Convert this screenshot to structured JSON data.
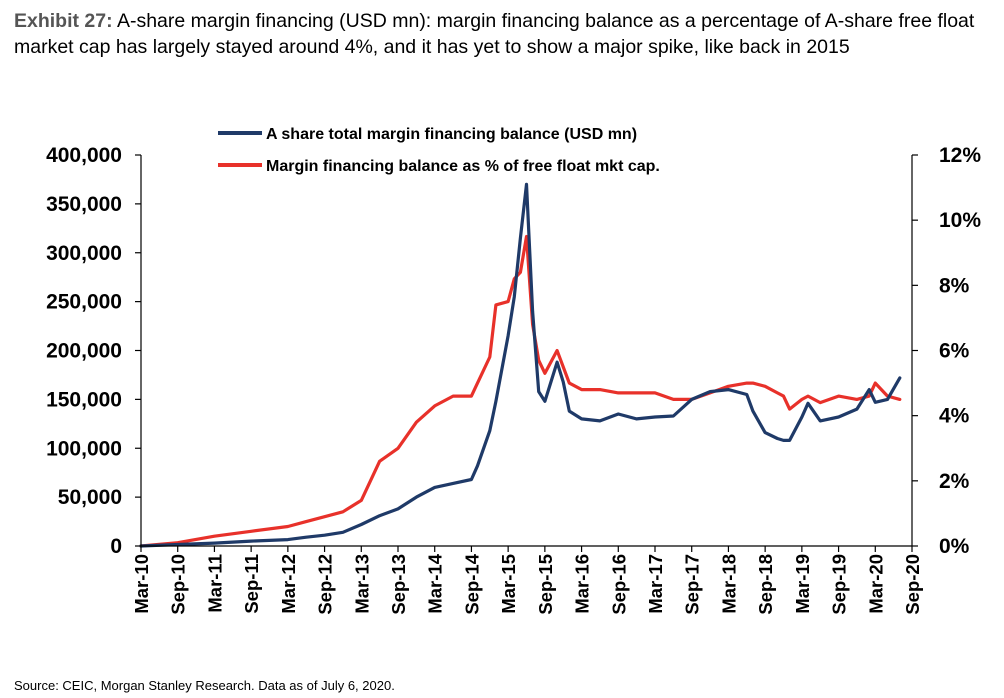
{
  "exhibit": {
    "label": "Exhibit 27:",
    "text": "A-share margin financing (USD mn): margin financing balance as a percentage of A-share free float market cap has largely stayed around 4%, and it has yet to show a major spike, like back in 2015"
  },
  "source": "Source: CEIC, Morgan Stanley Research. Data as of July 6, 2020.",
  "colors": {
    "balance": "#1f3a68",
    "percent": "#e8312a",
    "axis": "#000000"
  },
  "chart_data": {
    "type": "line",
    "title": "",
    "xlabel": "",
    "ylabel": "",
    "y2label": "",
    "ylim": [
      0,
      400000
    ],
    "y2lim": [
      0,
      12
    ],
    "yticks": [
      0,
      50000,
      100000,
      150000,
      200000,
      250000,
      300000,
      350000,
      400000
    ],
    "ytick_labels": [
      "0",
      "50,000",
      "100,000",
      "150,000",
      "200,000",
      "250,000",
      "300,000",
      "350,000",
      "400,000"
    ],
    "y2ticks": [
      0,
      2,
      4,
      6,
      8,
      10,
      12
    ],
    "y2tick_labels": [
      "0%",
      "2%",
      "4%",
      "6%",
      "8%",
      "10%",
      "12%"
    ],
    "xticks": [
      "Mar-10",
      "Sep-10",
      "Mar-11",
      "Sep-11",
      "Mar-12",
      "Sep-12",
      "Mar-13",
      "Sep-13",
      "Mar-14",
      "Sep-14",
      "Mar-15",
      "Sep-15",
      "Mar-16",
      "Sep-16",
      "Mar-17",
      "Sep-17",
      "Mar-18",
      "Sep-18",
      "Mar-19",
      "Sep-19",
      "Mar-20",
      "Sep-20"
    ],
    "grid": false,
    "legend_position": "top-center",
    "series": [
      {
        "name": "A share total margin financing balance (USD mn)",
        "axis": "left",
        "x": [
          "2010-03",
          "2010-09",
          "2011-03",
          "2011-09",
          "2012-03",
          "2012-06",
          "2012-09",
          "2012-12",
          "2013-03",
          "2013-06",
          "2013-09",
          "2013-12",
          "2014-03",
          "2014-06",
          "2014-09",
          "2014-10",
          "2014-12",
          "2015-01",
          "2015-03",
          "2015-04",
          "2015-05",
          "2015-06",
          "2015-07",
          "2015-08",
          "2015-09",
          "2015-11",
          "2015-12",
          "2016-01",
          "2016-03",
          "2016-06",
          "2016-09",
          "2016-12",
          "2017-03",
          "2017-06",
          "2017-09",
          "2017-12",
          "2018-03",
          "2018-06",
          "2018-07",
          "2018-09",
          "2018-11",
          "2018-12",
          "2019-01",
          "2019-03",
          "2019-04",
          "2019-06",
          "2019-09",
          "2019-12",
          "2020-02",
          "2020-03",
          "2020-05",
          "2020-07"
        ],
        "values": [
          0,
          1500,
          3000,
          5000,
          6500,
          9000,
          11000,
          14000,
          22000,
          31000,
          38000,
          50000,
          60000,
          64000,
          68000,
          82000,
          118000,
          148000,
          215000,
          255000,
          315000,
          370000,
          240000,
          158000,
          148000,
          188000,
          168000,
          138000,
          130000,
          128000,
          135000,
          130000,
          132000,
          133000,
          150000,
          158000,
          160000,
          155000,
          138000,
          116000,
          110000,
          108000,
          108000,
          132000,
          146000,
          128000,
          132000,
          140000,
          160000,
          147000,
          150000,
          172000
        ]
      },
      {
        "name": "Margin financing balance as % of free float mkt cap.",
        "axis": "right",
        "x": [
          "2010-03",
          "2010-09",
          "2011-03",
          "2011-09",
          "2012-03",
          "2012-06",
          "2012-09",
          "2012-12",
          "2013-03",
          "2013-06",
          "2013-09",
          "2013-12",
          "2014-03",
          "2014-06",
          "2014-09",
          "2014-10",
          "2014-12",
          "2015-01",
          "2015-03",
          "2015-04",
          "2015-05",
          "2015-06",
          "2015-07",
          "2015-08",
          "2015-09",
          "2015-11",
          "2015-12",
          "2016-01",
          "2016-03",
          "2016-06",
          "2016-09",
          "2016-12",
          "2017-03",
          "2017-06",
          "2017-09",
          "2017-12",
          "2018-03",
          "2018-06",
          "2018-07",
          "2018-09",
          "2018-11",
          "2018-12",
          "2019-01",
          "2019-03",
          "2019-04",
          "2019-06",
          "2019-09",
          "2019-12",
          "2020-02",
          "2020-03",
          "2020-05",
          "2020-07"
        ],
        "values": [
          0,
          0.1,
          0.3,
          0.45,
          0.6,
          0.75,
          0.9,
          1.05,
          1.4,
          2.6,
          3.0,
          3.8,
          4.3,
          4.6,
          4.6,
          5.0,
          5.8,
          7.4,
          7.5,
          8.2,
          8.4,
          9.5,
          6.8,
          5.7,
          5.3,
          6.0,
          5.5,
          5.0,
          4.8,
          4.8,
          4.7,
          4.7,
          4.7,
          4.5,
          4.5,
          4.7,
          4.9,
          5.0,
          5.0,
          4.9,
          4.7,
          4.6,
          4.2,
          4.5,
          4.6,
          4.4,
          4.6,
          4.5,
          4.6,
          5.0,
          4.6,
          4.5
        ]
      }
    ]
  }
}
